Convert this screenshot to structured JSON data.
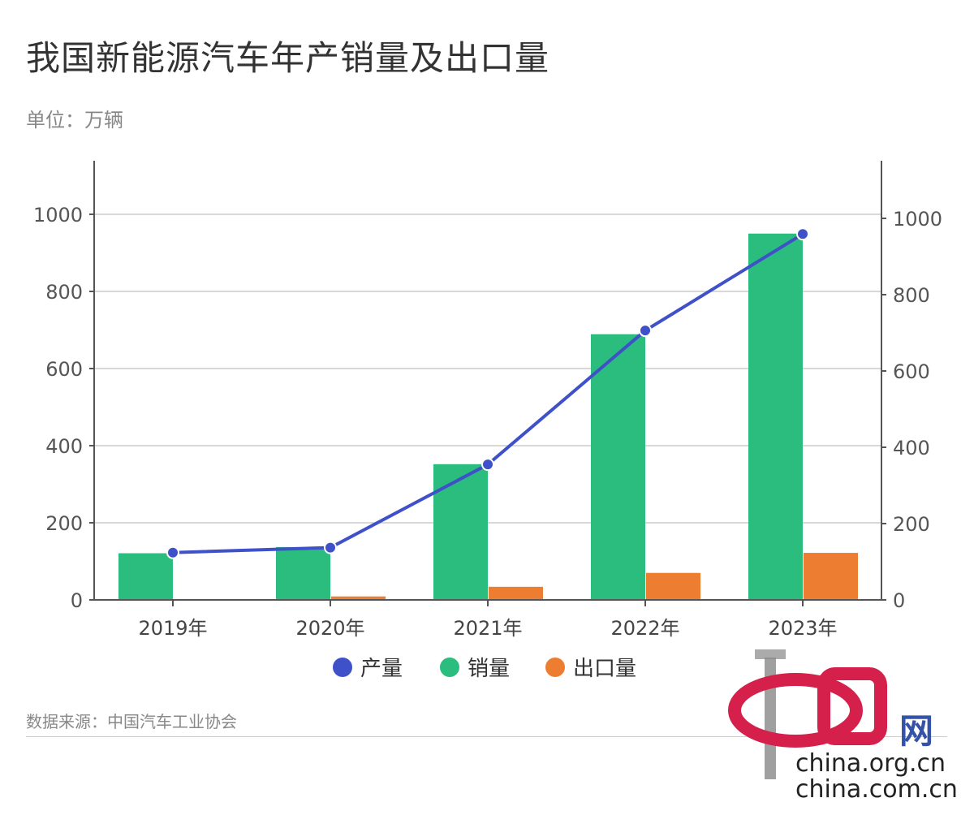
{
  "title": "我国新能源汽车年产销量及出口量",
  "unit": "单位：万辆",
  "source": "数据来源：中国汽车工业协会",
  "logo": {
    "text1": "china.org.cn",
    "text2": "china.com.cn",
    "mark": "中国网"
  },
  "chart_data": {
    "type": "bar",
    "title": "我国新能源汽车年产销量及出口量",
    "categories": [
      "2019年",
      "2020年",
      "2021年",
      "2022年",
      "2023年"
    ],
    "series": [
      {
        "name": "产量",
        "type": "line",
        "axis": "right",
        "color": "#3f51c9",
        "values": [
          124,
          137,
          355,
          706,
          959
        ]
      },
      {
        "name": "销量",
        "type": "bar",
        "axis": "left",
        "color": "#2bbd7e",
        "values": [
          121,
          137,
          352,
          689,
          950
        ]
      },
      {
        "name": "出口量",
        "type": "bar",
        "axis": "left",
        "color": "#ed7d31",
        "values": [
          1,
          9,
          34,
          70,
          122
        ]
      }
    ],
    "left_axis": {
      "ylim": [
        0,
        1100
      ],
      "ticks": [
        "0",
        "200",
        "400",
        "600",
        "800",
        "1000"
      ]
    },
    "right_axis": {
      "ylim": [
        0,
        1100
      ],
      "ticks": [
        "0",
        "200",
        "400",
        "600",
        "800",
        "1000"
      ]
    },
    "grid": true,
    "legend": "bottom"
  }
}
